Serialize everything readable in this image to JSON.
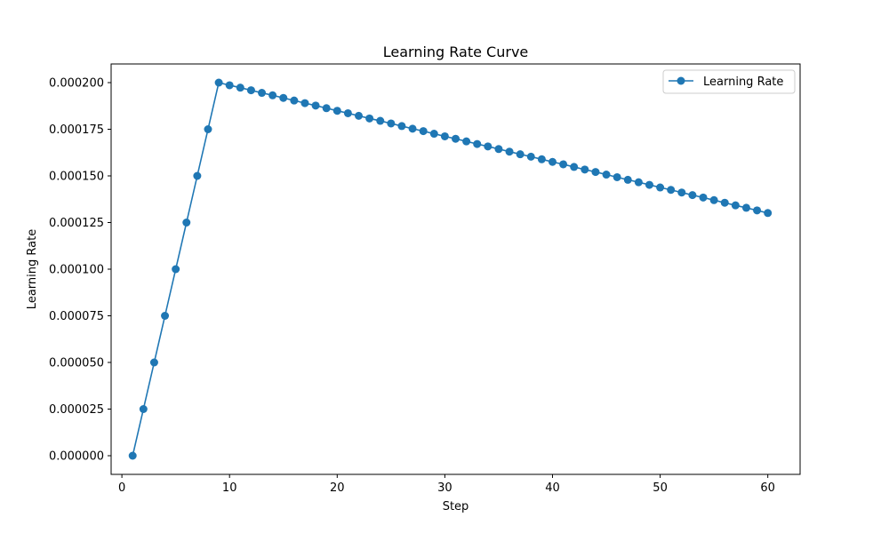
{
  "chart_data": {
    "type": "line",
    "title": "Learning Rate Curve",
    "xlabel": "Step",
    "ylabel": "Learning Rate",
    "xlim": [
      -1,
      63
    ],
    "ylim": [
      -1e-05,
      0.00021
    ],
    "xticks": [
      0,
      10,
      20,
      30,
      40,
      50,
      60
    ],
    "xtick_labels": [
      "0",
      "10",
      "20",
      "30",
      "40",
      "50",
      "60"
    ],
    "yticks": [
      0,
      2.5e-05,
      5e-05,
      7.5e-05,
      0.0001,
      0.000125,
      0.00015,
      0.000175,
      0.0002
    ],
    "ytick_labels": [
      "0.000000",
      "0.000025",
      "0.000050",
      "0.000075",
      "0.000100",
      "0.000125",
      "0.000150",
      "0.000175",
      "0.000200"
    ],
    "grid": false,
    "legend_position": "top-right",
    "colors": {
      "series": "#1f77b4"
    },
    "series": [
      {
        "name": "Learning Rate",
        "marker": "circle",
        "x": [
          1,
          2,
          3,
          4,
          5,
          6,
          7,
          8,
          9,
          10,
          11,
          12,
          13,
          14,
          15,
          16,
          17,
          18,
          19,
          20,
          21,
          22,
          23,
          24,
          25,
          26,
          27,
          28,
          29,
          30,
          31,
          32,
          33,
          34,
          35,
          36,
          37,
          38,
          39,
          40,
          41,
          42,
          43,
          44,
          45,
          46,
          47,
          48,
          49,
          50,
          51,
          52,
          53,
          54,
          55,
          56,
          57,
          58,
          59,
          60
        ],
        "y": [
          0,
          2.5e-05,
          5e-05,
          7.5e-05,
          0.0001,
          0.000125,
          0.00015,
          0.000175,
          0.0002,
          0.0001986,
          0.0001973,
          0.0001959,
          0.0001945,
          0.0001932,
          0.0001918,
          0.0001904,
          0.000189,
          0.0001877,
          0.0001863,
          0.0001849,
          0.0001836,
          0.0001822,
          0.0001808,
          0.0001795,
          0.0001781,
          0.0001767,
          0.0001753,
          0.000174,
          0.0001726,
          0.0001712,
          0.0001699,
          0.0001685,
          0.0001671,
          0.0001658,
          0.0001644,
          0.000163,
          0.0001616,
          0.0001603,
          0.0001589,
          0.0001575,
          0.0001562,
          0.0001548,
          0.0001534,
          0.0001521,
          0.0001507,
          0.0001493,
          0.0001479,
          0.0001466,
          0.0001452,
          0.0001438,
          0.0001425,
          0.0001411,
          0.0001397,
          0.0001384,
          0.000137,
          0.0001356,
          0.0001342,
          0.0001329,
          0.0001315,
          0.0001301
        ]
      }
    ]
  }
}
